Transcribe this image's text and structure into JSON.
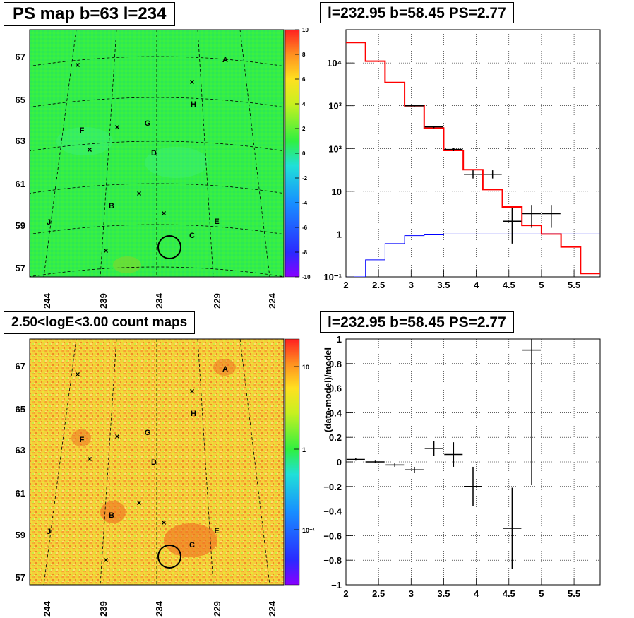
{
  "titles": {
    "ps_map": "PS map b=63 l=234",
    "spectrum": "l=232.95 b=58.45 PS=2.77",
    "count_maps": "2.50<logE<3.00 count maps",
    "residuals": "l=232.95 b=58.45 PS=2.77"
  },
  "maps": {
    "lat_labels": [
      "67",
      "65",
      "63",
      "61",
      "59",
      "57"
    ],
    "lon_labels": [
      "244",
      "239",
      "234",
      "229",
      "224"
    ],
    "source_labels": [
      "A",
      "H",
      "G",
      "F",
      "D",
      "B",
      "E",
      "C",
      "J"
    ],
    "ps_colorbar": {
      "range": [
        -10,
        10
      ],
      "tick_labels": [
        "10",
        "8",
        "6",
        "4",
        "2",
        "0",
        "-2",
        "-4",
        "-6",
        "-8",
        "-10"
      ]
    },
    "count_colorbar": {
      "scale": "log",
      "tick_labels": [
        "10",
        "1",
        "10⁻¹"
      ]
    },
    "colors": {
      "ps_background": "#33ee4a",
      "count_background": "#f5cf3a",
      "hot_spot": "#f06a20",
      "circle": "#000000",
      "grid": "#000000"
    }
  },
  "chart_data": [
    {
      "type": "line",
      "title": "l=232.95 b=58.45 PS=2.77",
      "xlabel": "",
      "ylabel": "",
      "yscale": "log",
      "xlim": [
        2,
        5.9
      ],
      "ylim": [
        0.1,
        60000
      ],
      "grid": true,
      "x_tick_labels": [
        "2",
        "2.5",
        "3",
        "3.5",
        "4",
        "4.5",
        "5",
        "5.5"
      ],
      "y_tick_labels": [
        "10⁻¹",
        "1",
        "10",
        "10²",
        "10³",
        "10⁴"
      ],
      "bin_edges": [
        2,
        2.3,
        2.6,
        2.9,
        3.2,
        3.5,
        3.8,
        4.1,
        4.4,
        4.7,
        5.0,
        5.3,
        5.6,
        5.9
      ],
      "series": [
        {
          "color": "#ff0000",
          "style": "step",
          "values": [
            30000,
            11000,
            3500,
            1000,
            300,
            90,
            32,
            11,
            4.3,
            1.6,
            1.0,
            0.5,
            0.12
          ]
        },
        {
          "color": "#0000ff",
          "style": "step",
          "values": [
            0.1,
            0.25,
            0.6,
            0.92,
            0.96,
            1.0,
            1.0,
            1.0,
            1.0,
            1.0,
            1.0,
            1.0,
            1.0
          ]
        },
        {
          "color": "#000000",
          "style": "errorbar",
          "points": [
            {
              "x": 3.05,
              "y": 1000,
              "ylo": 960,
              "yhi": 1040
            },
            {
              "x": 3.35,
              "y": 320,
              "ylo": 300,
              "yhi": 340
            },
            {
              "x": 3.65,
              "y": 95,
              "ylo": 87,
              "yhi": 103
            },
            {
              "x": 3.95,
              "y": 25,
              "ylo": 20,
              "yhi": 31
            },
            {
              "x": 4.25,
              "y": 25,
              "ylo": 20,
              "yhi": 31
            },
            {
              "x": 4.55,
              "y": 2.0,
              "ylo": 0.6,
              "yhi": 4.0
            },
            {
              "x": 4.85,
              "y": 3.0,
              "ylo": 1.4,
              "yhi": 4.8
            },
            {
              "x": 5.15,
              "y": 3.0,
              "ylo": 1.4,
              "yhi": 4.8
            }
          ]
        }
      ]
    },
    {
      "type": "scatter",
      "title": "l=232.95 b=58.45 PS=2.77",
      "xlabel": "",
      "ylabel": "(data-model)/model",
      "xlim": [
        2,
        5.9
      ],
      "ylim": [
        -1,
        1
      ],
      "grid": true,
      "x_tick_labels": [
        "2",
        "2.5",
        "3",
        "3.5",
        "4",
        "4.5",
        "5",
        "5.5"
      ],
      "y_tick_labels": [
        "1",
        "0.8",
        "0.6",
        "0.4",
        "0.2",
        "0",
        "−0.2",
        "−0.4",
        "−0.6",
        "−0.8",
        "−1"
      ],
      "series": [
        {
          "color": "#000000",
          "points": [
            {
              "x": 2.15,
              "y": 0.02,
              "yerr": 0.01
            },
            {
              "x": 2.45,
              "y": 0.0,
              "yerr": 0.01
            },
            {
              "x": 2.75,
              "y": -0.025,
              "yerr": 0.015
            },
            {
              "x": 3.05,
              "y": -0.065,
              "yerr": 0.025
            },
            {
              "x": 3.35,
              "y": 0.11,
              "yerr": 0.06
            },
            {
              "x": 3.65,
              "y": 0.06,
              "yerr": 0.1
            },
            {
              "x": 3.95,
              "y": -0.2,
              "yerr": 0.16
            },
            {
              "x": 4.55,
              "y": -0.54,
              "yerr": 0.33
            },
            {
              "x": 4.85,
              "y": 0.91,
              "yerr": 1.1
            }
          ]
        }
      ]
    }
  ]
}
